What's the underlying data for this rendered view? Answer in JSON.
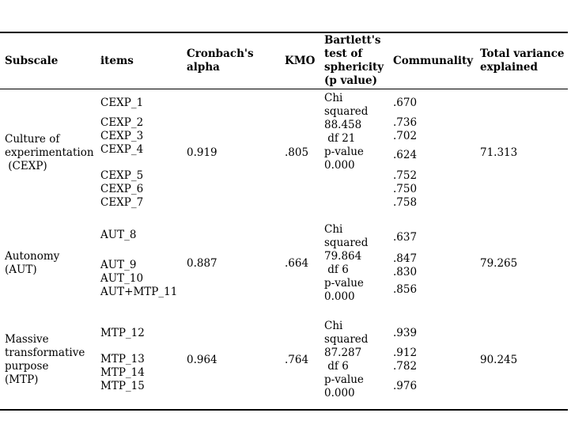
{
  "table": {
    "headers": {
      "subscale": "Subscale",
      "items": "items",
      "cronbachs_alpha": "Cronbach's alpha",
      "kmo": "KMO",
      "bartlett": "Bartlett's test of sphericity (p value)",
      "communality": "Communality",
      "total_variance": "Total variance explained"
    },
    "rows": [
      {
        "subscale_lines": [
          "Culture of",
          "experimentation",
          " (CEXP)"
        ],
        "item_groups": [
          [
            "CEXP_1"
          ],
          [
            "CEXP_2",
            "CEXP_3",
            "CEXP_4"
          ],
          [
            "CEXP_5",
            "CEXP_6",
            "CEXP_7"
          ]
        ],
        "cronbachs_alpha": "0.919",
        "kmo": ".805",
        "bartlett_lines": [
          "Chi",
          "squared",
          "88.458",
          " df 21",
          "p-value",
          "0.000"
        ],
        "communality_groups": [
          [
            ".670"
          ],
          [
            ".736",
            ".702"
          ],
          [
            ".624"
          ],
          [
            ".752",
            ".750",
            ".758"
          ]
        ],
        "total_variance": "71.313"
      },
      {
        "subscale_lines": [
          "Autonomy",
          "(AUT)"
        ],
        "item_groups": [
          [
            "AUT_8"
          ],
          [
            "AUT_9",
            "AUT_10",
            "AUT+MTP_11"
          ]
        ],
        "cronbachs_alpha": "0.887",
        "kmo": ".664",
        "bartlett_lines": [
          "Chi",
          "squared",
          "79.864",
          " df 6",
          "p-value",
          "0.000"
        ],
        "communality_groups": [
          [
            ".637"
          ],
          [
            ".847",
            ".830"
          ],
          [
            ".856"
          ]
        ],
        "total_variance": "79.265"
      },
      {
        "subscale_lines": [
          "Massive",
          "transformative",
          "purpose",
          "(MTP)"
        ],
        "item_groups": [
          [
            "MTP_12"
          ],
          [
            "MTP_13",
            "MTP_14",
            "MTP_15"
          ]
        ],
        "cronbachs_alpha": "0.964",
        "kmo": ".764",
        "bartlett_lines": [
          "Chi",
          "squared",
          "87.287",
          " df 6",
          "p-value",
          "0.000"
        ],
        "communality_groups": [
          [
            ".939"
          ],
          [
            ".912",
            ".782"
          ],
          [
            ".976"
          ]
        ],
        "total_variance": "90.245"
      }
    ]
  }
}
